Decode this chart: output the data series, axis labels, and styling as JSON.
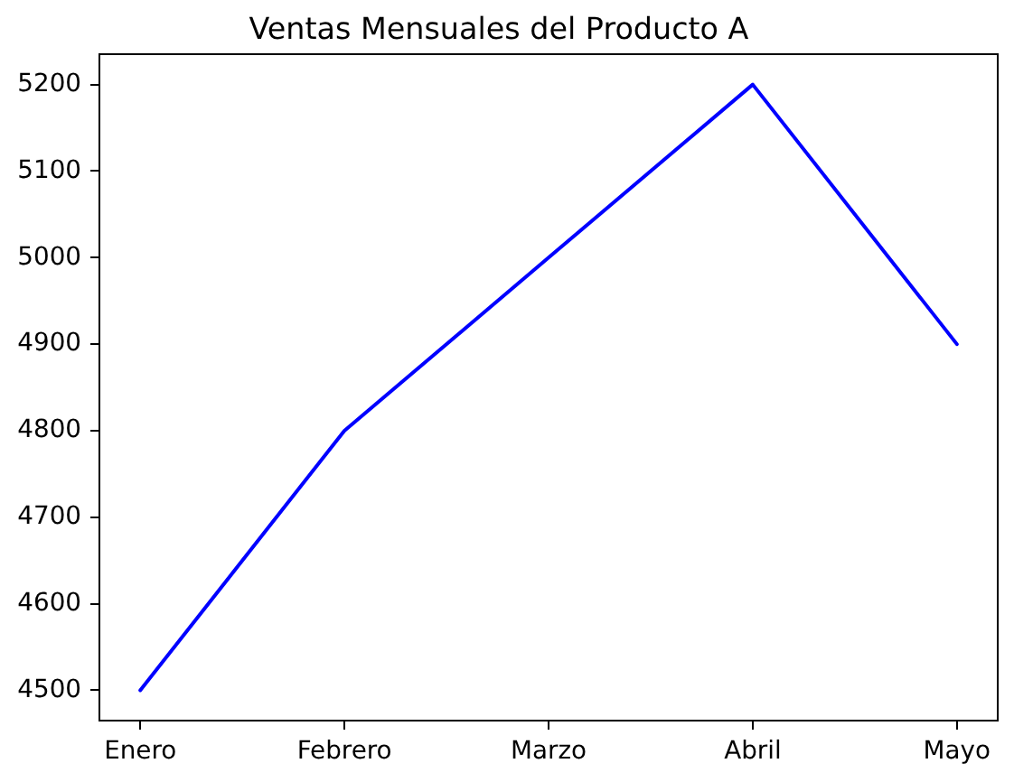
{
  "chart_data": {
    "type": "line",
    "title": "Ventas Mensuales del Producto A",
    "categories": [
      "Enero",
      "Febrero",
      "Marzo",
      "Abril",
      "Mayo"
    ],
    "values": [
      4500,
      4800,
      5000,
      5200,
      4900
    ],
    "color": "#0000ff",
    "ylim": [
      4465,
      5235
    ],
    "yticks": [
      4500,
      4600,
      4700,
      4800,
      4900,
      5000,
      5100,
      5200
    ]
  }
}
